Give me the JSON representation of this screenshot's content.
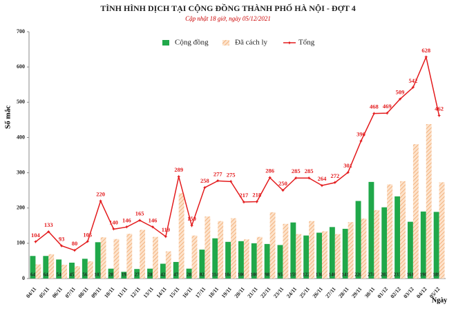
{
  "chart_data": {
    "type": "combo",
    "title": "TÌNH HÌNH DỊCH TẠI CỘNG ĐỒNG THÀNH PHỐ HÀ NỘI - ĐỢT 4",
    "subtitle": "Cập nhật 18 giờ, ngày 05/12/2021",
    "y_label": "Số mắc",
    "x_label": "Ngày",
    "categories": [
      "04/11",
      "05/11",
      "06/11",
      "07/11",
      "08/11",
      "09/11",
      "10/11",
      "11/11",
      "12/11",
      "13/11",
      "14/11",
      "15/11",
      "16/11",
      "17/11",
      "18/11",
      "19/11",
      "20/11",
      "21/11",
      "22/11",
      "23/11",
      "24/11",
      "25/11",
      "26/11",
      "27/11",
      "28/11",
      "29/11",
      "30/11",
      "01/12",
      "02/12",
      "03/12",
      "04/12",
      "05/12"
    ],
    "series": [
      {
        "name": "Cộng đồng",
        "type": "bar",
        "color": "#20a84a",
        "values": [
          64,
          64,
          54,
          45,
          56,
          103,
          28,
          19,
          27,
          28,
          42,
          47,
          28,
          82,
          114,
          104,
          106,
          100,
          98,
          95,
          159,
          122,
          130,
          146,
          141,
          220,
          274,
          202,
          233,
          161,
          190,
          189
        ]
      },
      {
        "name": "Đã cách ly",
        "type": "bar",
        "color": "#f6c59c",
        "values": [
          40,
          69,
          39,
          35,
          49,
          117,
          112,
          127,
          138,
          118,
          77,
          242,
          122,
          176,
          163,
          171,
          111,
          118,
          188,
          155,
          126,
          163,
          134,
          126,
          160,
          170,
          194,
          267,
          276,
          381,
          438,
          273
        ]
      },
      {
        "name": "Tổng",
        "type": "line",
        "color": "#e31a1c",
        "values": [
          104,
          133,
          93,
          80,
          105,
          220,
          140,
          146,
          165,
          146,
          119,
          289,
          150,
          258,
          277,
          275,
          217,
          218,
          286,
          250,
          285,
          285,
          264,
          272,
          301,
          390,
          468,
          469,
          509,
          542,
          628,
          462
        ]
      }
    ],
    "ylim": [
      0,
      700
    ],
    "yticks": [
      0,
      100,
      200,
      300,
      400,
      500,
      600,
      700
    ],
    "legend": "top"
  }
}
